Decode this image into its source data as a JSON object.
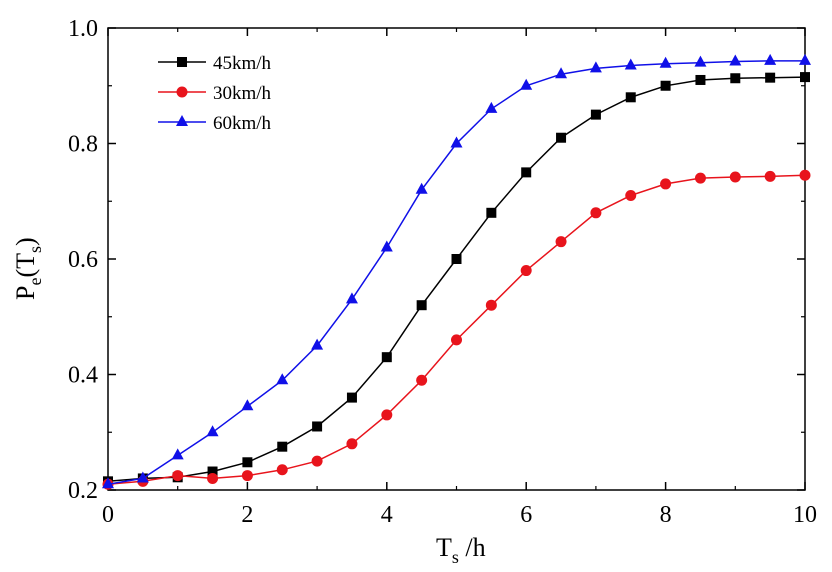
{
  "chart_data": {
    "type": "scatter",
    "xlabel_main": "T",
    "xlabel_sub": "s",
    "xlabel_unit": " /h",
    "ylabel_p": "P",
    "ylabel_e": "e",
    "ylabel_open": "(T",
    "ylabel_s": "s",
    "ylabel_close": ")",
    "xlim": [
      0,
      10
    ],
    "ylim": [
      0.2,
      1.0
    ],
    "xticks": [
      0,
      2,
      4,
      6,
      8,
      10
    ],
    "xtick_labels": [
      "0",
      "2",
      "4",
      "6",
      "8",
      "10"
    ],
    "yticks": [
      0.2,
      0.4,
      0.6,
      0.8,
      1.0
    ],
    "ytick_labels": [
      "0.2",
      "0.4",
      "0.6",
      "0.8",
      "1.0"
    ],
    "grid": false,
    "legend_position": "top-left",
    "series": [
      {
        "name": "45km/h",
        "color": "#000000",
        "marker": "square",
        "points": [
          [
            0.0,
            0.215
          ],
          [
            0.5,
            0.22
          ],
          [
            1.0,
            0.222
          ],
          [
            1.5,
            0.232
          ],
          [
            2.0,
            0.248
          ],
          [
            2.5,
            0.275
          ],
          [
            3.0,
            0.31
          ],
          [
            3.5,
            0.36
          ],
          [
            4.0,
            0.43
          ],
          [
            4.5,
            0.52
          ],
          [
            5.0,
            0.6
          ],
          [
            5.5,
            0.68
          ],
          [
            6.0,
            0.75
          ],
          [
            6.5,
            0.81
          ],
          [
            7.0,
            0.85
          ],
          [
            7.5,
            0.88
          ],
          [
            8.0,
            0.9
          ],
          [
            8.5,
            0.91
          ],
          [
            9.0,
            0.913
          ],
          [
            9.5,
            0.914
          ],
          [
            10.0,
            0.915
          ]
        ]
      },
      {
        "name": "30km/h",
        "color": "#e8141c",
        "marker": "circle",
        "points": [
          [
            0.0,
            0.21
          ],
          [
            0.5,
            0.215
          ],
          [
            1.0,
            0.225
          ],
          [
            1.5,
            0.22
          ],
          [
            2.0,
            0.225
          ],
          [
            2.5,
            0.235
          ],
          [
            3.0,
            0.25
          ],
          [
            3.5,
            0.28
          ],
          [
            4.0,
            0.33
          ],
          [
            4.5,
            0.39
          ],
          [
            5.0,
            0.46
          ],
          [
            5.5,
            0.52
          ],
          [
            6.0,
            0.58
          ],
          [
            6.5,
            0.63
          ],
          [
            7.0,
            0.68
          ],
          [
            7.5,
            0.71
          ],
          [
            8.0,
            0.73
          ],
          [
            8.5,
            0.74
          ],
          [
            9.0,
            0.742
          ],
          [
            9.5,
            0.743
          ],
          [
            10.0,
            0.745
          ]
        ]
      },
      {
        "name": "60km/h",
        "color": "#1010e8",
        "marker": "triangle",
        "points": [
          [
            0.0,
            0.21
          ],
          [
            0.5,
            0.22
          ],
          [
            1.0,
            0.26
          ],
          [
            1.5,
            0.3
          ],
          [
            2.0,
            0.345
          ],
          [
            2.5,
            0.39
          ],
          [
            3.0,
            0.45
          ],
          [
            3.5,
            0.53
          ],
          [
            4.0,
            0.62
          ],
          [
            4.5,
            0.72
          ],
          [
            5.0,
            0.8
          ],
          [
            5.5,
            0.86
          ],
          [
            6.0,
            0.9
          ],
          [
            6.5,
            0.92
          ],
          [
            7.0,
            0.93
          ],
          [
            7.5,
            0.935
          ],
          [
            8.0,
            0.938
          ],
          [
            8.5,
            0.94
          ],
          [
            9.0,
            0.942
          ],
          [
            9.5,
            0.943
          ],
          [
            10.0,
            0.943
          ]
        ]
      }
    ]
  }
}
